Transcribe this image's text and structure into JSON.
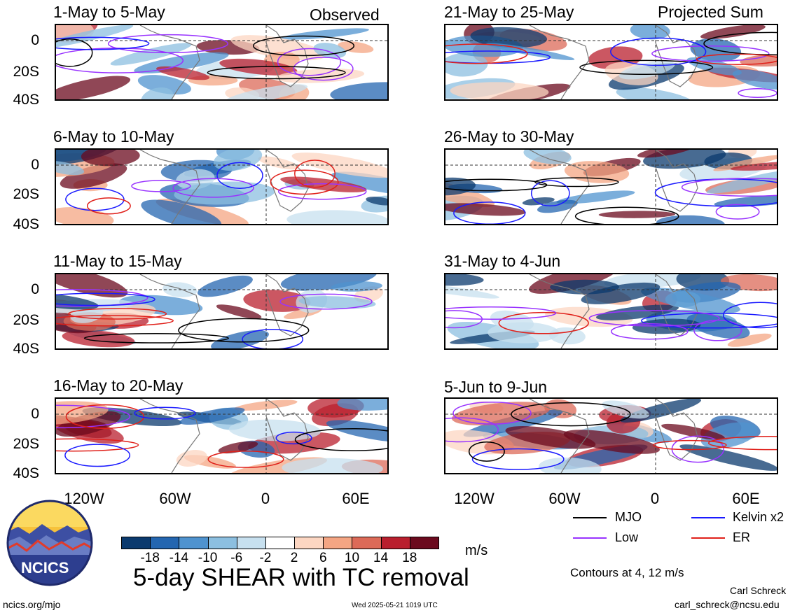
{
  "left_header": "Observed",
  "right_header": "Projected Sum",
  "panels": [
    {
      "id": "p1",
      "title": "1-May to 5-May",
      "col": 0,
      "row": 0
    },
    {
      "id": "p2",
      "title": "6-May to 10-May",
      "col": 0,
      "row": 1
    },
    {
      "id": "p3",
      "title": "11-May to 15-May",
      "col": 0,
      "row": 2
    },
    {
      "id": "p4",
      "title": "16-May to 20-May",
      "col": 0,
      "row": 3
    },
    {
      "id": "p5",
      "title": "21-May to 25-May",
      "col": 1,
      "row": 0
    },
    {
      "id": "p6",
      "title": "26-May to 30-May",
      "col": 1,
      "row": 1
    },
    {
      "id": "p7",
      "title": "31-May to 4-Jun",
      "col": 1,
      "row": 2
    },
    {
      "id": "p8",
      "title": "5-Jun to 9-Jun",
      "col": 1,
      "row": 3
    }
  ],
  "y_ticks": [
    "0",
    "20S",
    "40S"
  ],
  "x_ticks": [
    "120W",
    "60W",
    "0",
    "60E"
  ],
  "legend": {
    "items": [
      {
        "label": "MJO",
        "color": "#000000"
      },
      {
        "label": "Kelvin x2",
        "color": "#1a1aff"
      },
      {
        "label": "Low",
        "color": "#9933ff"
      },
      {
        "label": "ER",
        "color": "#e0201a"
      }
    ],
    "contour_note": "Contours at 4, 12 m/s"
  },
  "colorbar": {
    "colors": [
      "#0b3a6e",
      "#2466b0",
      "#4f93cf",
      "#8cbfe0",
      "#c7e0ef",
      "#ffffff",
      "#fcd6c2",
      "#f4a583",
      "#dc6a58",
      "#b91f2e",
      "#6b0a1e"
    ],
    "ticks": [
      "-18",
      "-14",
      "-10",
      "-6",
      "-2",
      "2",
      "6",
      "10",
      "14",
      "18"
    ],
    "units": "m/s"
  },
  "main_title": "5-day SHEAR with TC removal",
  "logo_text": "NCICS",
  "footer": {
    "url": "ncics.org/mjo",
    "timestamp": "Wed 2025-05-21 1019 UTC",
    "author": "Carl Schreck",
    "email": "carl_schreck@ncsu.edu"
  },
  "chart_data": {
    "type": "heatmap",
    "description_panels": 8,
    "variable_units": "m/s",
    "x_axis_ticks": [
      "120W",
      "60W",
      "0",
      "60E"
    ],
    "y_axis_ticks": [
      "0",
      "20S",
      "40S"
    ],
    "colorbar_levels": [
      -18,
      -14,
      -10,
      -6,
      -2,
      2,
      6,
      10,
      14,
      18
    ],
    "contour_levels": [
      4,
      12
    ],
    "contour_series": [
      "MJO",
      "Kelvin x2",
      "Low",
      "ER"
    ]
  }
}
